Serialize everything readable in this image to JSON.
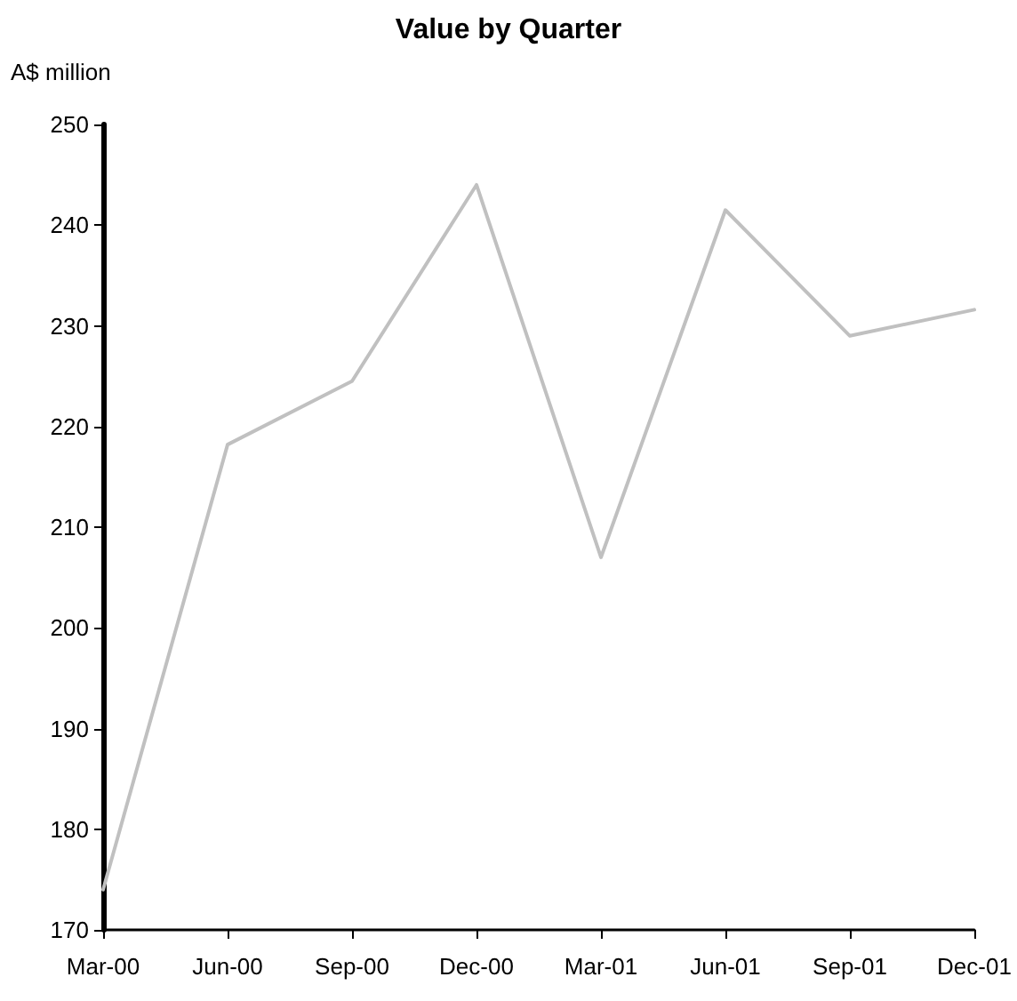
{
  "chart_data": {
    "type": "line",
    "title": "Value by Quarter",
    "ylabel": "A$ million",
    "categories": [
      "Mar-00",
      "Jun-00",
      "Sep-00",
      "Dec-00",
      "Mar-01",
      "Jun-01",
      "Sep-01",
      "Dec-01"
    ],
    "series": [
      {
        "color": "#c0c0c0",
        "values": [
          174,
          218.2,
          224.5,
          244,
          207,
          241.5,
          229,
          231.6
        ]
      }
    ],
    "ylim": [
      170,
      250
    ],
    "yticks": [
      170,
      180,
      190,
      200,
      210,
      220,
      230,
      240,
      250
    ],
    "grid": false,
    "marker": "none",
    "line_style": "solid"
  }
}
